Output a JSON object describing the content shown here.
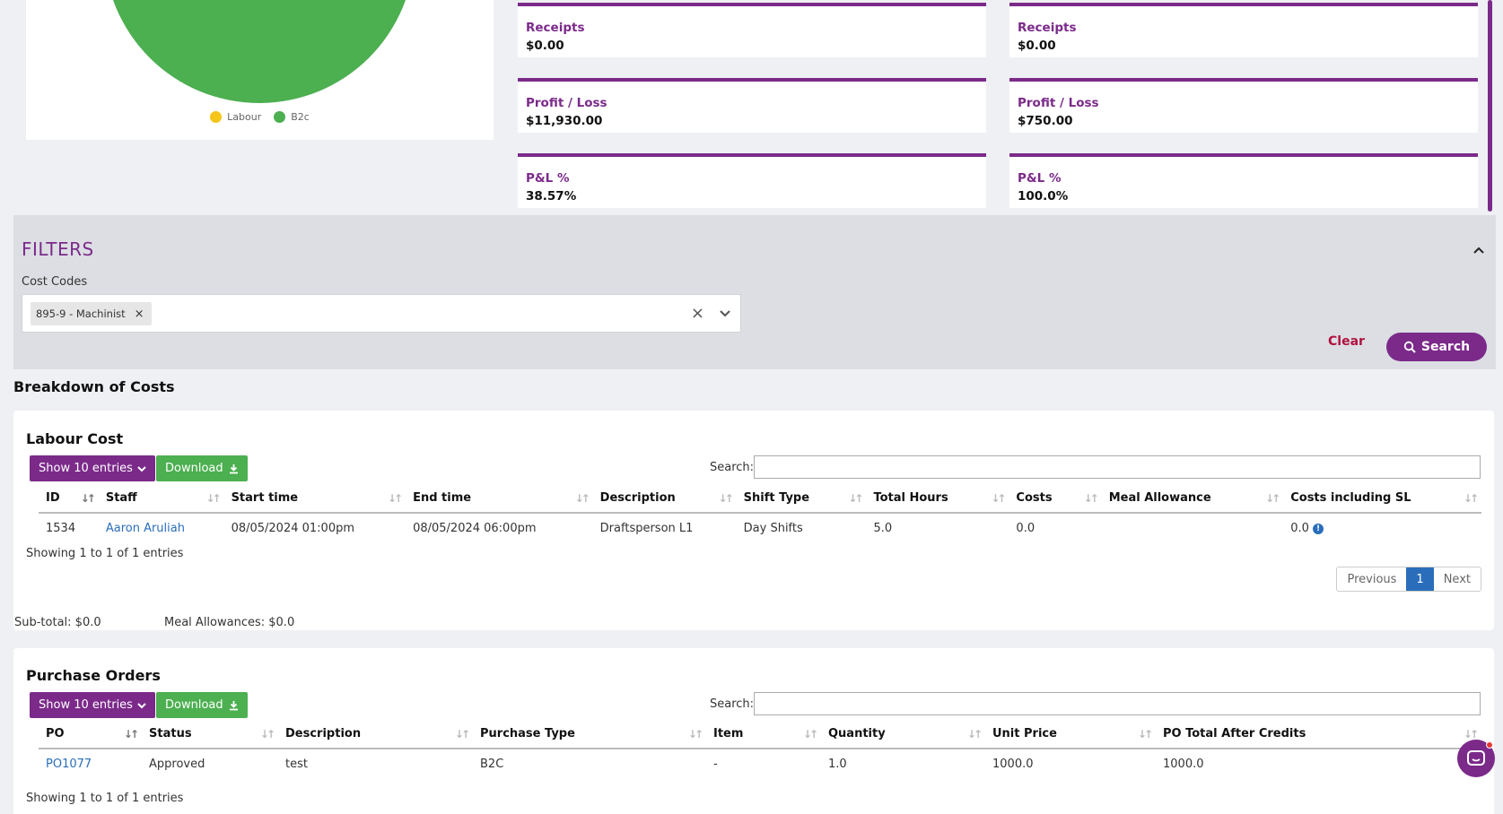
{
  "pie": {
    "legend": [
      {
        "label": "Labour",
        "color": "#f5c518"
      },
      {
        "label": "B2c",
        "color": "#4caf50"
      }
    ]
  },
  "stats": {
    "left": [
      {
        "label": "Receipts",
        "value": "$0.00"
      },
      {
        "label": "Profit / Loss",
        "value": "$11,930.00"
      },
      {
        "label": "P&L %",
        "value": "38.57%"
      }
    ],
    "right": [
      {
        "label": "Receipts",
        "value": "$0.00"
      },
      {
        "label": "Profit / Loss",
        "value": "$750.00"
      },
      {
        "label": "P&L %",
        "value": "100.0%"
      }
    ]
  },
  "filters": {
    "title": "FILTERS",
    "cost_codes_label": "Cost Codes",
    "selected_tag": "895-9 - Machinist",
    "clear_label": "Clear",
    "search_label": "Search"
  },
  "breakdown_title": "Breakdown of Costs",
  "labour": {
    "title": "Labour Cost",
    "show_label": "Show 10 entries",
    "download_label": "Download",
    "search_label": "Search:",
    "columns": [
      "ID",
      "Staff",
      "Start time",
      "End time",
      "Description",
      "Shift Type",
      "Total Hours",
      "Costs",
      "Meal Allowance",
      "Costs including SL"
    ],
    "rows": [
      {
        "id": "1534",
        "staff": "Aaron Aruliah",
        "start": "08/05/2024 01:00pm",
        "end": "08/05/2024 06:00pm",
        "description": "Draftsperson L1",
        "shift_type": "Day Shifts",
        "total_hours": "5.0",
        "costs": "0.0",
        "meal": "",
        "costs_sl": "0.0"
      }
    ],
    "showing": "Showing 1 to 1 of 1 entries",
    "pager": {
      "prev": "Previous",
      "page": "1",
      "next": "Next"
    },
    "subtotal": "Sub-total: $0.0",
    "meal_allowances": "Meal Allowances: $0.0"
  },
  "purchase": {
    "title": "Purchase Orders",
    "show_label": "Show 10 entries",
    "download_label": "Download",
    "search_label": "Search:",
    "columns": [
      "PO",
      "Status",
      "Description",
      "Purchase Type",
      "Item",
      "Quantity",
      "Unit Price",
      "PO Total After Credits"
    ],
    "rows": [
      {
        "po": "PO1077",
        "status": "Approved",
        "description": "test",
        "type": "B2C",
        "item": "-",
        "quantity": "1.0",
        "unit_price": "1000.0",
        "total": "1000.0"
      }
    ],
    "showing": "Showing 1 to 1 of 1 entries"
  },
  "colors": {
    "accent": "#7b2a8a",
    "green": "#4caf50",
    "link": "#2a6ebb",
    "danger": "#b0123f"
  }
}
